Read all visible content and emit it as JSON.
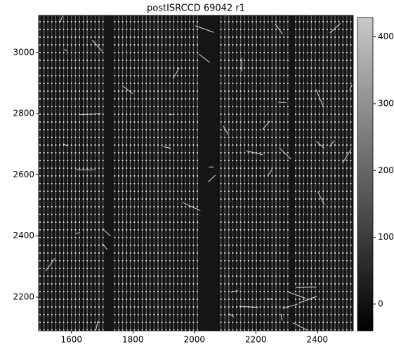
{
  "chart_data": {
    "type": "image",
    "title": "postISRCCD 69042 r1",
    "xlim": [
      1493,
      2517
    ],
    "ylim": [
      2090,
      3121
    ],
    "xticks": [
      1600,
      1800,
      2000,
      2200,
      2400
    ],
    "yticks": [
      2200,
      2400,
      2600,
      2800,
      3000
    ],
    "colorbar": {
      "lim": [
        -40,
        429
      ],
      "ticks": [
        0,
        100,
        200,
        300,
        400
      ],
      "colormap": "gray"
    }
  }
}
